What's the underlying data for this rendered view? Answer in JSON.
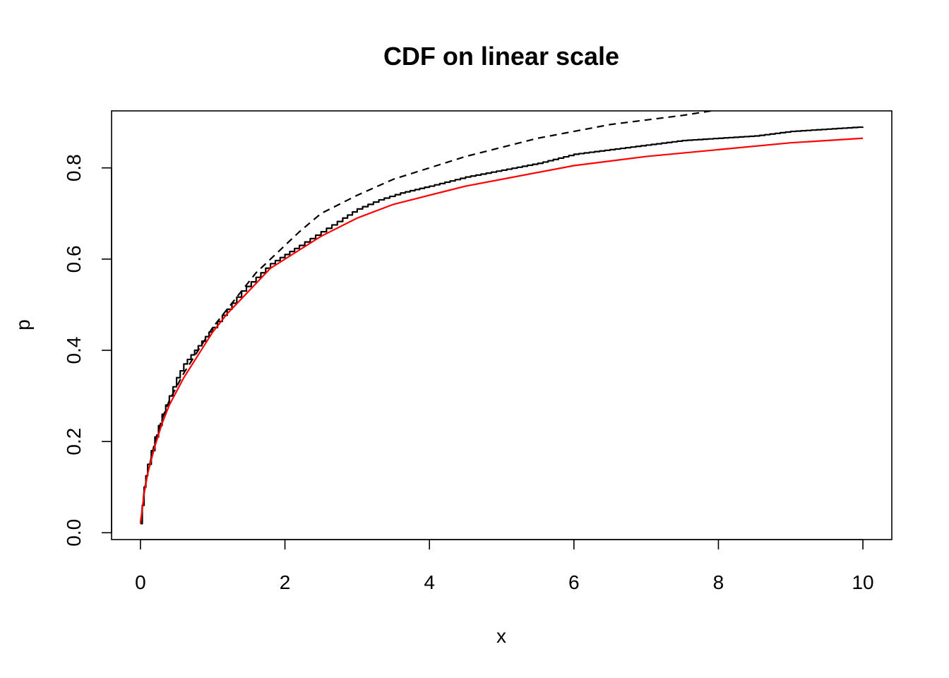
{
  "chart_data": {
    "type": "line",
    "title": "CDF on linear scale",
    "xlabel": "x",
    "ylabel": "p",
    "xlim": [
      -0.4,
      10.4
    ],
    "ylim": [
      -0.015,
      0.925
    ],
    "x_ticks": [
      0,
      2,
      4,
      6,
      8,
      10
    ],
    "x_tick_labels": [
      "0",
      "2",
      "4",
      "6",
      "8",
      "10"
    ],
    "y_ticks": [
      0.0,
      0.2,
      0.4,
      0.6,
      0.8
    ],
    "y_tick_labels": [
      "0.0",
      "0.2",
      "0.4",
      "0.6",
      "0.8"
    ],
    "grid": false,
    "legend": "none",
    "series": [
      {
        "style": "solid-step",
        "color": "#000000",
        "x": [
          0.0,
          0.05,
          0.1,
          0.2,
          0.3,
          0.4,
          0.5,
          0.6,
          0.7,
          0.8,
          0.9,
          1.0,
          1.2,
          1.4,
          1.6,
          1.8,
          2.0,
          2.2,
          2.5,
          2.8,
          3.0,
          3.3,
          3.6,
          4.0,
          4.5,
          5.0,
          5.5,
          6.0,
          6.5,
          7.0,
          7.5,
          8.0,
          8.5,
          9.0,
          9.5,
          10.0
        ],
        "y": [
          0.02,
          0.1,
          0.15,
          0.21,
          0.26,
          0.3,
          0.34,
          0.37,
          0.39,
          0.41,
          0.43,
          0.45,
          0.49,
          0.53,
          0.56,
          0.59,
          0.61,
          0.63,
          0.66,
          0.69,
          0.71,
          0.73,
          0.745,
          0.76,
          0.78,
          0.795,
          0.81,
          0.83,
          0.84,
          0.85,
          0.86,
          0.865,
          0.87,
          0.88,
          0.885,
          0.89
        ]
      },
      {
        "style": "dashed",
        "color": "#000000",
        "x": [
          0.0,
          0.05,
          0.1,
          0.2,
          0.3,
          0.4,
          0.5,
          0.6,
          0.8,
          1.0,
          1.2,
          1.4,
          1.6,
          1.8,
          2.0,
          2.2,
          2.5,
          3.0,
          3.5,
          4.0,
          4.5,
          5.0,
          5.5,
          6.0,
          6.5,
          7.0,
          7.5,
          7.9
        ],
        "y": [
          0.02,
          0.09,
          0.13,
          0.2,
          0.25,
          0.29,
          0.32,
          0.35,
          0.4,
          0.45,
          0.49,
          0.53,
          0.57,
          0.6,
          0.63,
          0.66,
          0.7,
          0.74,
          0.775,
          0.8,
          0.825,
          0.845,
          0.865,
          0.88,
          0.895,
          0.905,
          0.915,
          0.925
        ]
      },
      {
        "style": "solid",
        "color": "#ff0000",
        "x": [
          0.0,
          0.05,
          0.1,
          0.2,
          0.3,
          0.4,
          0.5,
          0.6,
          0.8,
          1.0,
          1.2,
          1.5,
          1.8,
          2.0,
          2.5,
          3.0,
          3.5,
          4.0,
          4.5,
          5.0,
          6.0,
          7.0,
          8.0,
          9.0,
          10.0
        ],
        "y": [
          0.02,
          0.085,
          0.13,
          0.19,
          0.24,
          0.28,
          0.31,
          0.34,
          0.39,
          0.44,
          0.48,
          0.53,
          0.58,
          0.6,
          0.65,
          0.69,
          0.72,
          0.74,
          0.76,
          0.775,
          0.805,
          0.825,
          0.84,
          0.855,
          0.865
        ]
      }
    ]
  }
}
